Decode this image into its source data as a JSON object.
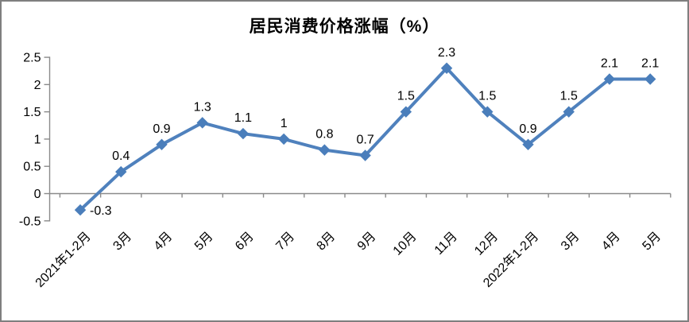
{
  "title": "居民消费价格涨幅（%）",
  "chart_data": {
    "type": "line",
    "title": "居民消费价格涨幅（%）",
    "categories": [
      "2021年1-2月",
      "3月",
      "4月",
      "5月",
      "6月",
      "7月",
      "8月",
      "9月",
      "10月",
      "11月",
      "12月",
      "2022年1-2月",
      "3月",
      "4月",
      "5月"
    ],
    "values": [
      -0.3,
      0.4,
      0.9,
      1.3,
      1.1,
      1,
      0.8,
      0.7,
      1.5,
      2.3,
      1.5,
      0.9,
      1.5,
      2.1,
      2.1
    ],
    "point_labels": [
      "-0.3",
      "0.4",
      "0.9",
      "1.3",
      "1.1",
      "1",
      "0.8",
      "0.7",
      "1.5",
      "2.3",
      "1.5",
      "0.9",
      "1.5",
      "2.1",
      "2.1"
    ],
    "xlabel": "",
    "ylabel": "",
    "ylim": [
      -0.5,
      2.5
    ],
    "ytick_labels": [
      "2.5",
      "2",
      "1.5",
      "1",
      "0.5",
      "0",
      "-0.5"
    ],
    "grid": false,
    "legend_position": "none",
    "marker": "diamond",
    "colors": {
      "line": "#4f81bd",
      "marker": "#4a7ebb",
      "axis": "#8a8a8a",
      "text": "#000000",
      "frame_border": "#7f7f7f"
    }
  }
}
